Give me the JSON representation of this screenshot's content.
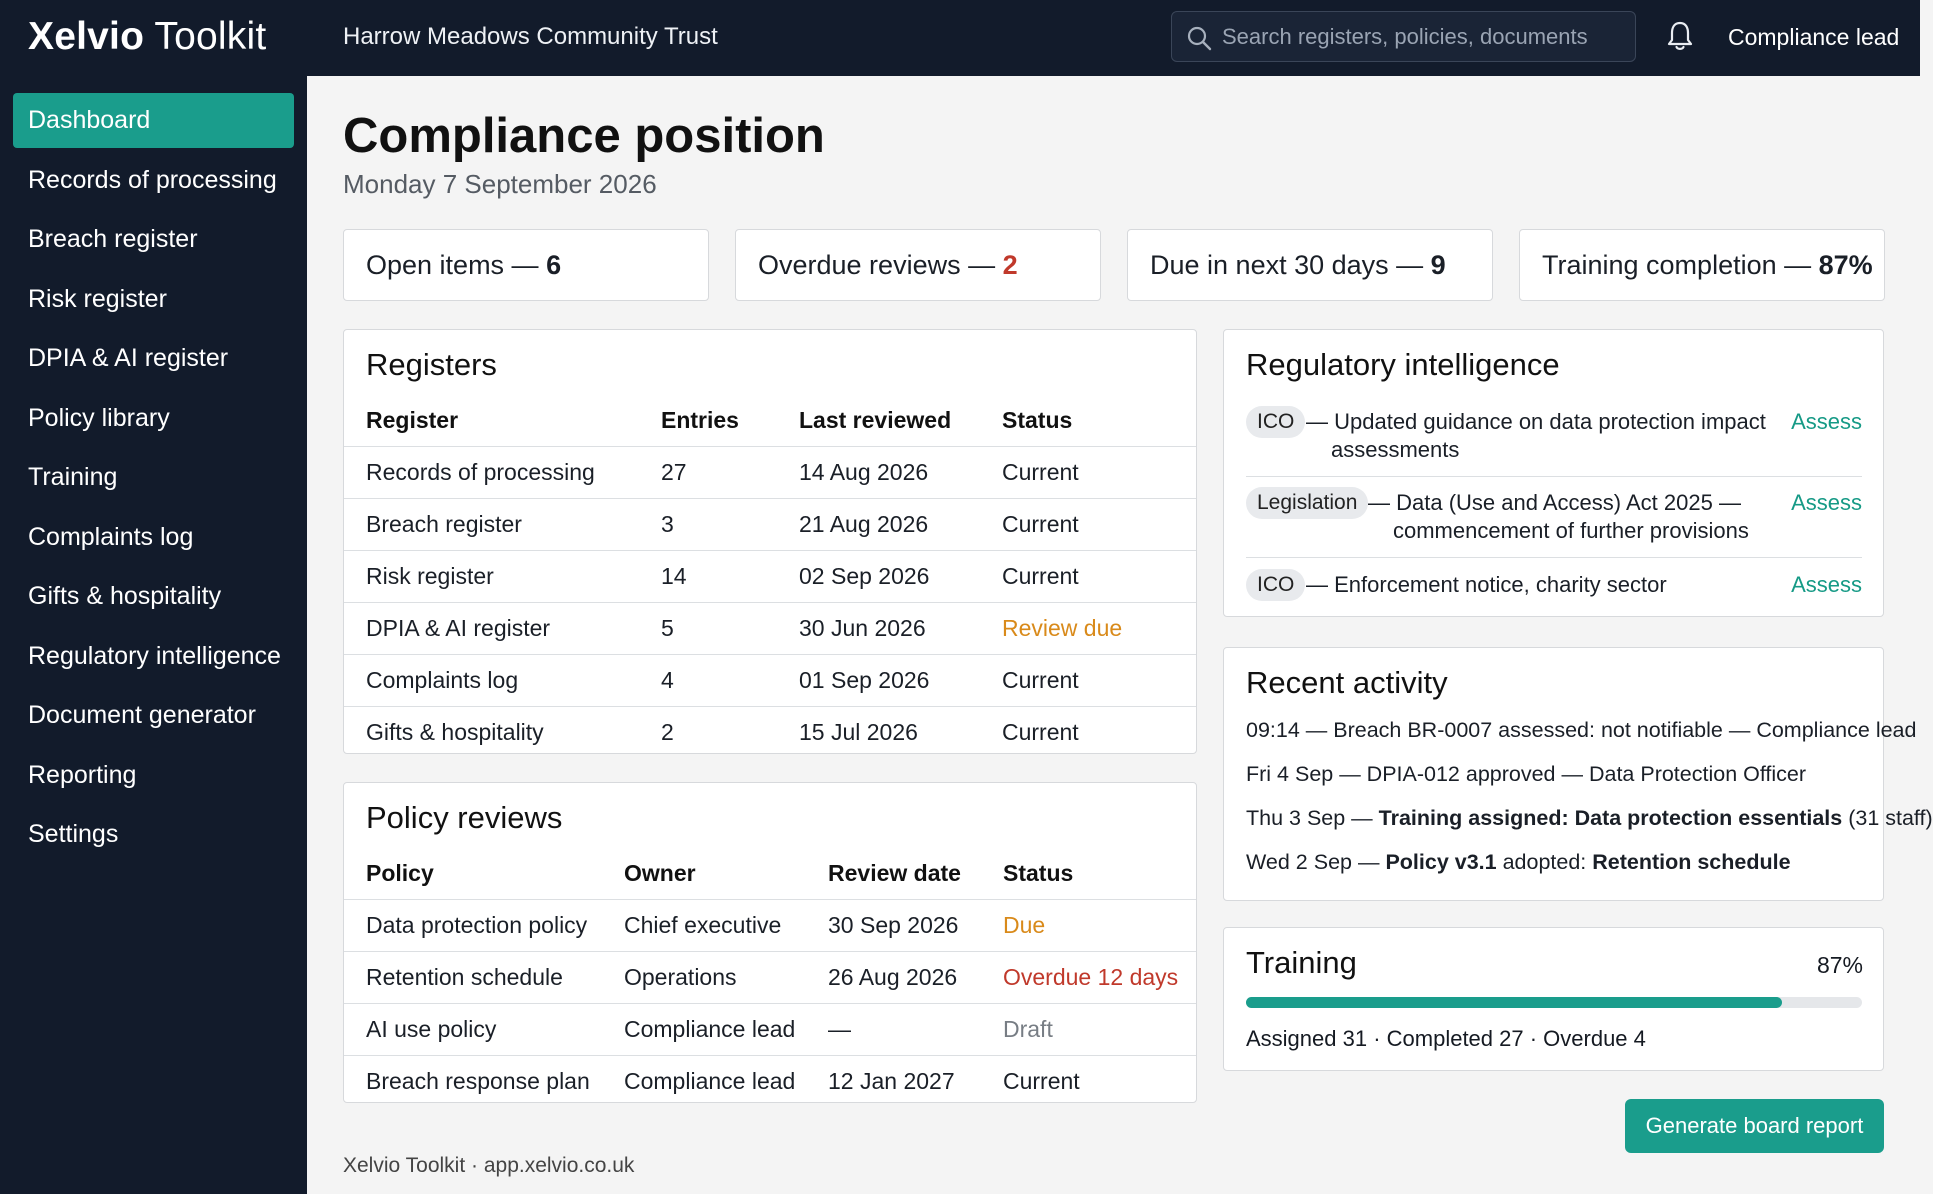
{
  "app": {
    "brand_bold": "Xelvio",
    "brand_rest": " Toolkit",
    "org": "Harrow Meadows Community Trust",
    "user_role": "Compliance lead"
  },
  "search": {
    "placeholder": "Search registers, policies, documents"
  },
  "sidebar": {
    "items": [
      {
        "label": "Dashboard",
        "active": true
      },
      {
        "label": "Records of processing"
      },
      {
        "label": "Breach register"
      },
      {
        "label": "Risk register"
      },
      {
        "label": "DPIA & AI register"
      },
      {
        "label": "Policy library"
      },
      {
        "label": "Training"
      },
      {
        "label": "Complaints log"
      },
      {
        "label": "Gifts & hospitality"
      },
      {
        "label": "Regulatory intelligence"
      },
      {
        "label": "Document generator"
      },
      {
        "label": "Reporting"
      },
      {
        "label": "Settings"
      }
    ]
  },
  "page": {
    "title": "Compliance position",
    "date": "Monday 7 September 2026"
  },
  "stats": [
    {
      "label": "Open items — ",
      "value": "6"
    },
    {
      "label": "Overdue reviews — ",
      "value": "2"
    },
    {
      "label": "Due in next 30 days — ",
      "value": "9"
    },
    {
      "label": "Training completion — ",
      "value": "87%"
    }
  ],
  "registers": {
    "title": "Registers",
    "headers": [
      "Register",
      "Entries",
      "Last reviewed",
      "Status"
    ],
    "rows": [
      [
        "Records of processing",
        "27",
        "14 Aug 2026",
        "Current"
      ],
      [
        "Breach register",
        "3",
        "21 Aug 2026",
        "Current"
      ],
      [
        "Risk register",
        "14",
        "02 Sep 2026",
        "Current"
      ],
      [
        "DPIA & AI register",
        "5",
        "30 Jun 2026",
        "Review due"
      ],
      [
        "Complaints log",
        "4",
        "01 Sep 2026",
        "Current"
      ],
      [
        "Gifts & hospitality",
        "2",
        "15 Jul 2026",
        "Current"
      ]
    ]
  },
  "policy_reviews": {
    "title": "Policy reviews",
    "headers": [
      "Policy",
      "Owner",
      "Review date",
      "Status"
    ],
    "rows": [
      [
        "Data protection policy",
        "Chief executive",
        "30 Sep 2026",
        "Due"
      ],
      [
        "Retention schedule",
        "Operations",
        "26 Aug 2026",
        "Overdue 12 days"
      ],
      [
        "AI use policy",
        "Compliance lead",
        "—",
        "Draft"
      ],
      [
        "Breach response plan",
        "Compliance lead",
        "12 Jan 2027",
        "Current"
      ]
    ]
  },
  "reg_intel": {
    "title": "Regulatory intelligence",
    "items": [
      {
        "tag": "ICO",
        "line1": "— Updated guidance on data protection impact",
        "line2": "assessments",
        "action": "Assess"
      },
      {
        "tag": "Legislation",
        "line1": "— Data (Use and Access) Act 2025 —",
        "line2": "commencement of further provisions",
        "action": "Assess"
      },
      {
        "tag": "ICO",
        "line1": "— Enforcement notice, charity sector",
        "line2": "",
        "action": "Assess"
      }
    ]
  },
  "activity": {
    "title": "Recent activity",
    "items": [
      {
        "pre": "09:14 — Breach BR-0007 assessed: not notifiable — Compliance lead",
        "b1": "",
        "mid": "",
        "b2": "",
        "post": ""
      },
      {
        "pre": "Fri 4 Sep — DPIA-012 approved — Data Protection Officer",
        "b1": "",
        "mid": "",
        "b2": "",
        "post": ""
      },
      {
        "pre": "Thu 3 Sep — ",
        "b1": "Training assigned:",
        "mid": " ",
        "b2": "Data protection essentials",
        "post": " (31 staff)"
      },
      {
        "pre": "Wed 2 Sep — ",
        "b1": "Policy v3.1",
        "mid": " adopted: ",
        "b2": "Retention schedule",
        "post": ""
      }
    ]
  },
  "training": {
    "title": "Training",
    "percent_label": "87%",
    "completion": 0.87,
    "summary": "Assigned 31 · Completed 27 · Overdue 4"
  },
  "actions": {
    "generate_label": "Generate board report"
  },
  "footer": {
    "text": "Xelvio Toolkit · app.xelvio.co.uk"
  }
}
